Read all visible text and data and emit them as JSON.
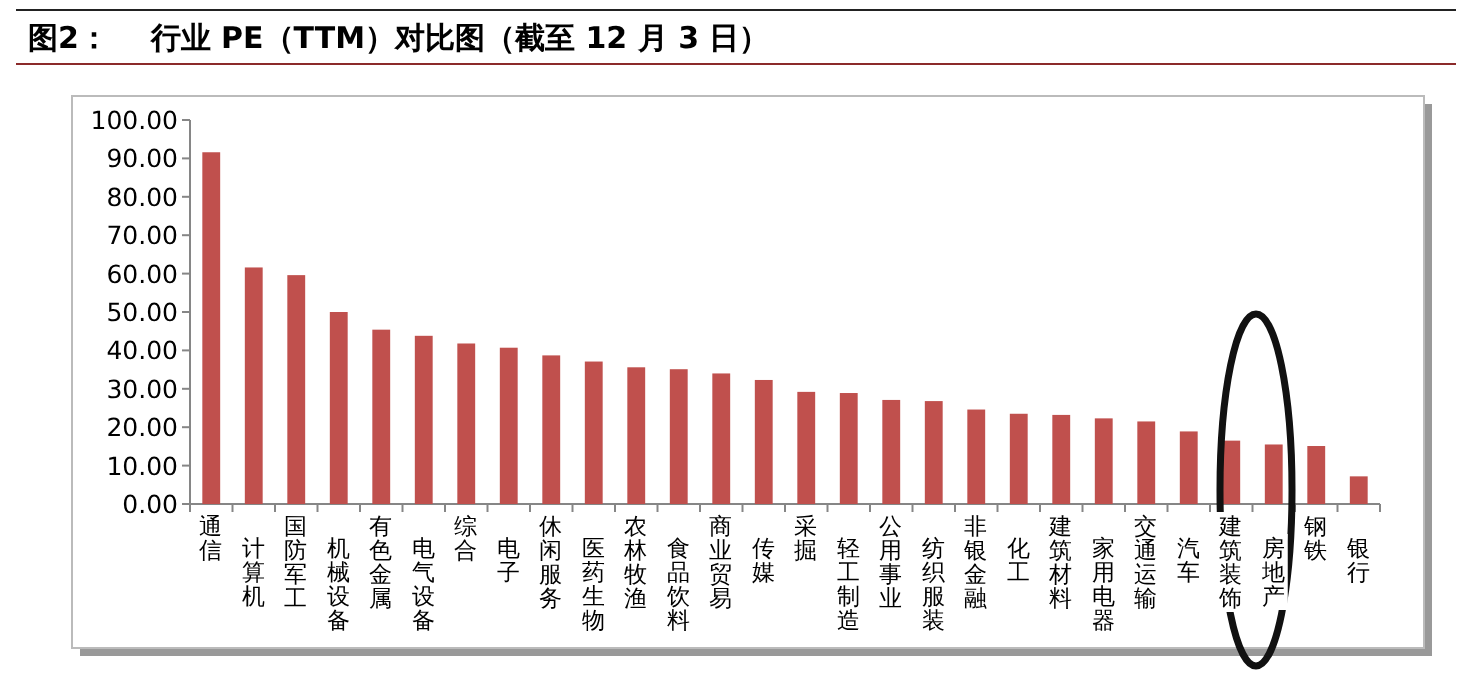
{
  "chart_data": {
    "type": "bar",
    "title": "图2：    行业 PE（TTM）对比图（截至 12 月 3 日）",
    "categories": [
      "通信",
      "计算机",
      "国防军工",
      "机械设备",
      "有色金属",
      "电气设备",
      "综合",
      "电子",
      "休闲服务",
      "医药生物",
      "农林牧渔",
      "食品饮料",
      "商业贸易",
      "传媒",
      "采掘",
      "轻工制造",
      "公用事业",
      "纺织服装",
      "非银金融",
      "化工",
      "建筑材料",
      "家用电器",
      "交通运输",
      "汽车",
      "建筑装饰",
      "房地产",
      "钢铁",
      "银行"
    ],
    "values": [
      91.6,
      61.6,
      59.6,
      50,
      45.4,
      43.8,
      41.8,
      40.7,
      38.7,
      37.1,
      35.6,
      35.1,
      34,
      32.3,
      29.2,
      28.9,
      27.1,
      26.8,
      24.6,
      23.5,
      23.2,
      22.3,
      21.5,
      18.9,
      16.5,
      15.5,
      15.1,
      7.2
    ],
    "color": "#c0504d",
    "ylim": [
      0,
      100
    ],
    "yticks": [
      {
        "value": 0,
        "label": "0.00"
      },
      {
        "value": 10,
        "label": "10.00"
      },
      {
        "value": 20,
        "label": "20.00"
      },
      {
        "value": 30,
        "label": "30.00"
      },
      {
        "value": 40,
        "label": "40.00"
      },
      {
        "value": 50,
        "label": "50.00"
      },
      {
        "value": 60,
        "label": "60.00"
      },
      {
        "value": 70,
        "label": "70.00"
      },
      {
        "value": 80,
        "label": "80.00"
      },
      {
        "value": 90,
        "label": "90.00"
      },
      {
        "value": 100,
        "label": "100.00"
      }
    ]
  }
}
